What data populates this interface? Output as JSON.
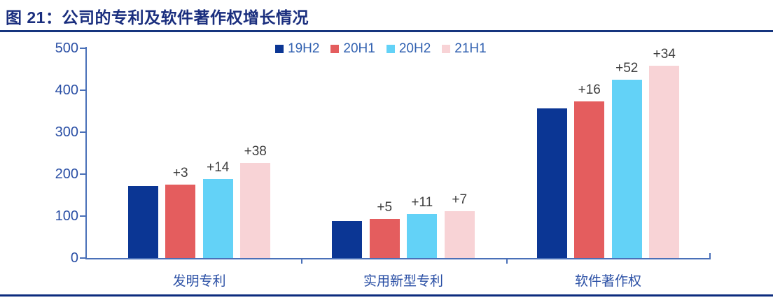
{
  "title": "图 21：公司的专利及软件著作权增长情况",
  "colors": {
    "series_19H2": "#0b3694",
    "series_20H1": "#e45d5e",
    "series_20H2": "#63d2f7",
    "series_21H1": "#f8d3d6",
    "axis": "#4a70b8",
    "axis_text": "#2a4fa5",
    "legend_text": "#3060b0",
    "title_text": "#1a2e7e",
    "title_rule": "#16357e",
    "bottom_rule": "#0c2c7e",
    "annotation_text": "#3f3f3f"
  },
  "chart_data": {
    "type": "bar",
    "title": "图 21：公司的专利及软件著作权增长情况",
    "categories": [
      "发明专利",
      "实用新型专利",
      "软件著作权"
    ],
    "series": [
      {
        "name": "19H2",
        "color": "#0b3694",
        "values": [
          172,
          89,
          357
        ],
        "labels": [
          "",
          "",
          ""
        ]
      },
      {
        "name": "20H1",
        "color": "#e45d5e",
        "values": [
          175,
          94,
          373
        ],
        "labels": [
          "+3",
          "+5",
          "+16"
        ]
      },
      {
        "name": "20H2",
        "color": "#63d2f7",
        "values": [
          189,
          105,
          425
        ],
        "labels": [
          "+14",
          "+11",
          "+52"
        ]
      },
      {
        "name": "21H1",
        "color": "#f8d3d6",
        "values": [
          227,
          112,
          459
        ],
        "labels": [
          "+38",
          "+7",
          "+34"
        ]
      }
    ],
    "ylim": [
      0,
      500
    ],
    "yticks": [
      0,
      100,
      200,
      300,
      400,
      500
    ],
    "xlabel": "",
    "ylabel": "",
    "grid": false,
    "legend_position": "top-center"
  }
}
